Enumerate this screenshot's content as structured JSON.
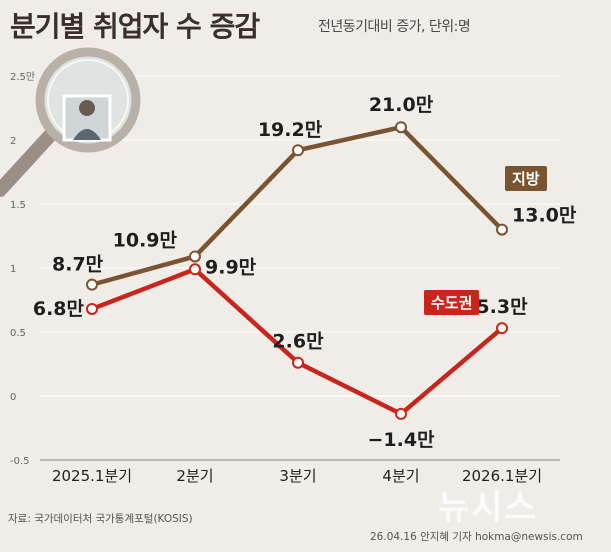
{
  "header": {
    "title": "분기별 취업자 수 증감",
    "subtitle": "전년동기대비 증가, 단위:명"
  },
  "footer": {
    "source": "자료: 국가데이터처 국가통계포털(KOSIS)",
    "credit": "26.04.16 안지혜 기자 hokma@newsis.com",
    "watermark": "뉴시스"
  },
  "colors": {
    "local": "#7a5430",
    "capital": "#c8261c",
    "background": "#f0ece8",
    "grid": "#ffffff"
  },
  "icons": {
    "magnifier": "magnifier-icon",
    "person": "person-icon"
  },
  "chart_data": {
    "type": "line",
    "title": "분기별 취업자 수 증감",
    "ylabel": "",
    "xlabel": "",
    "ylim": [
      -0.5,
      2.5
    ],
    "yticks": [
      2.5,
      2,
      1.5,
      1,
      0.5,
      0,
      -0.5
    ],
    "ytick_labels": [
      "2.5만",
      "2",
      "1.5",
      "1",
      "0.5",
      "0",
      "-0.5"
    ],
    "grid": true,
    "categories": [
      "2025.1분기",
      "2분기",
      "3분기",
      "4분기",
      "2026.1분기"
    ],
    "series": [
      {
        "name": "지방",
        "values": [
          0.87,
          1.09,
          1.92,
          2.1,
          1.3
        ],
        "labels": [
          "8.7만",
          "10.9만",
          "19.2만",
          "21.0만",
          "13.0만"
        ]
      },
      {
        "name": "수도권",
        "values": [
          0.68,
          0.99,
          0.26,
          -0.14,
          0.53
        ],
        "labels": [
          "6.8만",
          "9.9만",
          "2.6만",
          "−1.4만",
          "5.3만"
        ]
      }
    ]
  }
}
